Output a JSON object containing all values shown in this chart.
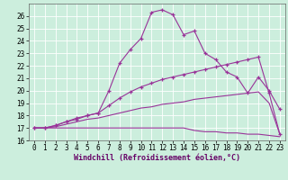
{
  "xlabel": "Windchill (Refroidissement éolien,°C)",
  "background_color": "#cceedd",
  "line_color": "#993399",
  "xlim": [
    -0.5,
    23.5
  ],
  "ylim": [
    16,
    27
  ],
  "yticks": [
    16,
    17,
    18,
    19,
    20,
    21,
    22,
    23,
    24,
    25,
    26
  ],
  "xticks": [
    0,
    1,
    2,
    3,
    4,
    5,
    6,
    7,
    8,
    9,
    10,
    11,
    12,
    13,
    14,
    15,
    16,
    17,
    18,
    19,
    20,
    21,
    22,
    23
  ],
  "series": [
    {
      "x": [
        0,
        1,
        2,
        3,
        4,
        5,
        6,
        7,
        8,
        9,
        10,
        11,
        12,
        13,
        14,
        15,
        16,
        17,
        18,
        19,
        20,
        21,
        22,
        23
      ],
      "y": [
        17.0,
        17.0,
        17.2,
        17.5,
        17.7,
        18.0,
        18.2,
        20.0,
        22.2,
        23.3,
        24.2,
        26.3,
        26.5,
        26.1,
        24.5,
        24.8,
        23.0,
        22.5,
        21.5,
        21.1,
        19.8,
        21.1,
        20.0,
        18.5
      ],
      "marker": true
    },
    {
      "x": [
        0,
        1,
        2,
        3,
        4,
        5,
        6,
        7,
        8,
        9,
        10,
        11,
        12,
        13,
        14,
        15,
        16,
        17,
        18,
        19,
        20,
        21,
        22,
        23
      ],
      "y": [
        17.0,
        17.0,
        17.2,
        17.5,
        17.8,
        18.0,
        18.2,
        18.8,
        19.4,
        19.9,
        20.3,
        20.6,
        20.9,
        21.1,
        21.3,
        21.5,
        21.7,
        21.9,
        22.1,
        22.3,
        22.5,
        22.7,
        19.8,
        16.5
      ],
      "marker": true
    },
    {
      "x": [
        0,
        1,
        2,
        3,
        4,
        5,
        6,
        7,
        8,
        9,
        10,
        11,
        12,
        13,
        14,
        15,
        16,
        17,
        18,
        19,
        20,
        21,
        22,
        23
      ],
      "y": [
        17.0,
        17.0,
        17.1,
        17.3,
        17.5,
        17.7,
        17.8,
        18.0,
        18.2,
        18.4,
        18.6,
        18.7,
        18.9,
        19.0,
        19.1,
        19.3,
        19.4,
        19.5,
        19.6,
        19.7,
        19.8,
        19.9,
        19.0,
        16.5
      ],
      "marker": false
    },
    {
      "x": [
        0,
        1,
        2,
        3,
        4,
        5,
        6,
        7,
        8,
        9,
        10,
        11,
        12,
        13,
        14,
        15,
        16,
        17,
        18,
        19,
        20,
        21,
        22,
        23
      ],
      "y": [
        17.0,
        17.0,
        17.0,
        17.0,
        17.0,
        17.0,
        17.0,
        17.0,
        17.0,
        17.0,
        17.0,
        17.0,
        17.0,
        17.0,
        17.0,
        16.8,
        16.7,
        16.7,
        16.6,
        16.6,
        16.5,
        16.5,
        16.4,
        16.3
      ],
      "marker": false
    }
  ]
}
